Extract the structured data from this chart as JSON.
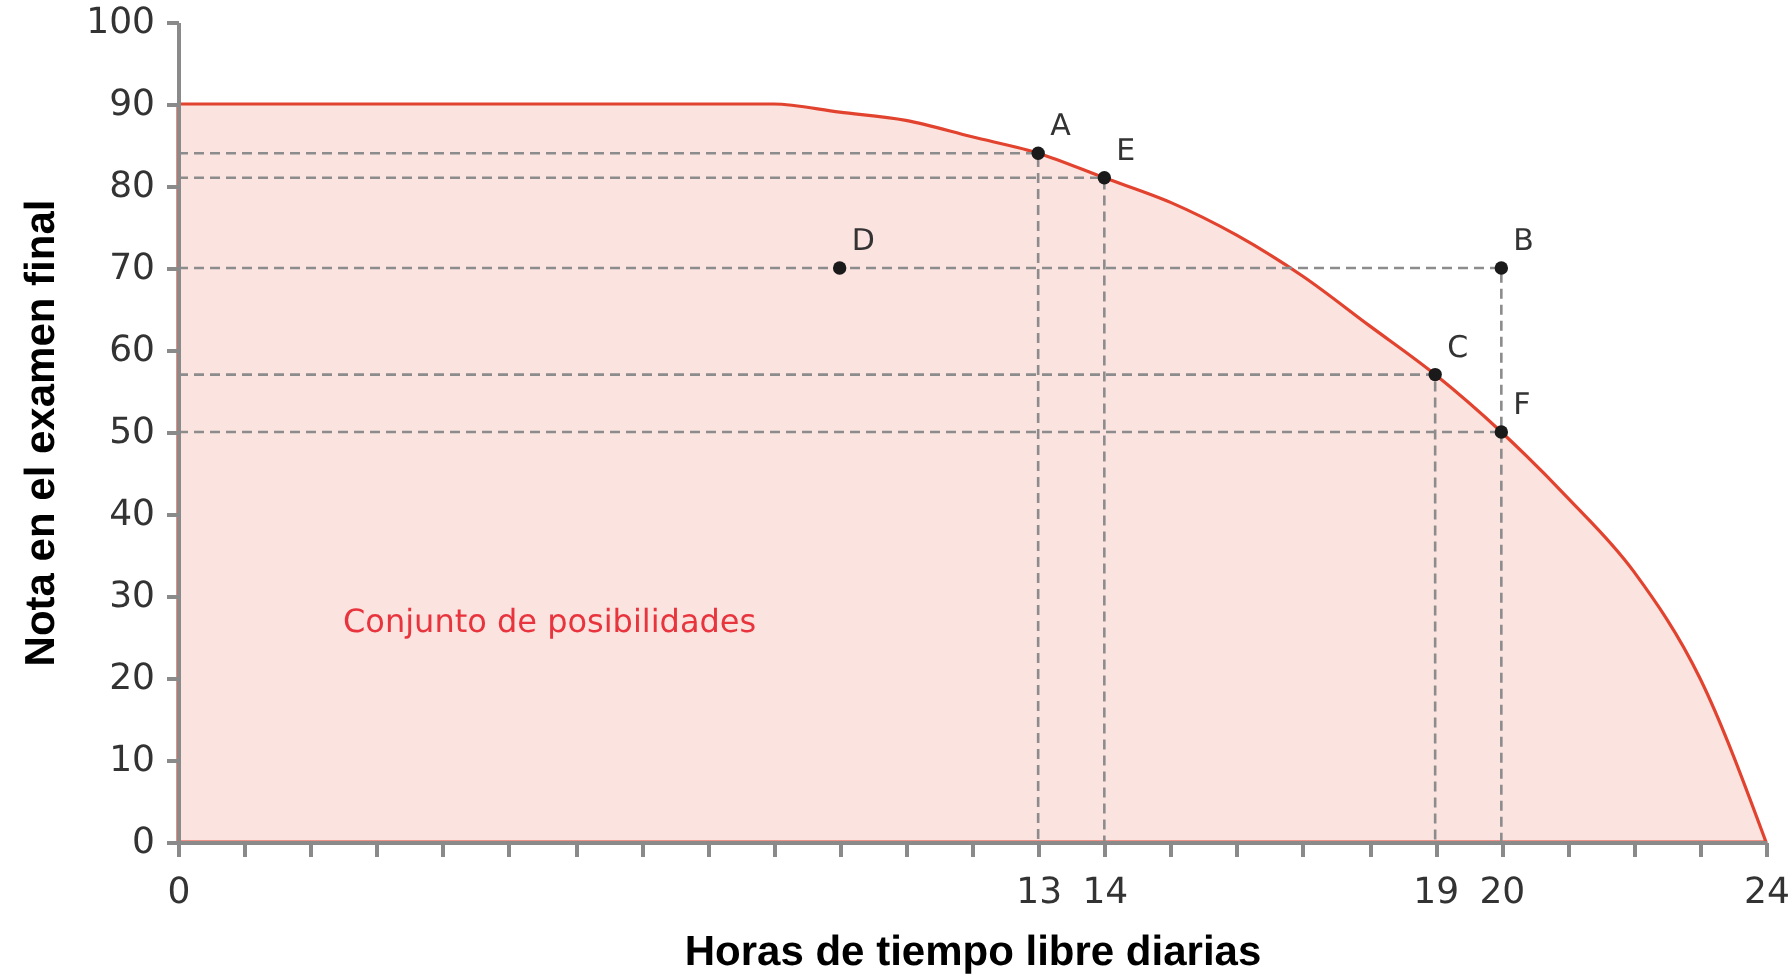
{
  "chart_data": {
    "type": "area",
    "xlabel": "Horas de tiempo libre diarias",
    "ylabel": "Nota en el examen final",
    "xlim": [
      0,
      24
    ],
    "ylim": [
      0,
      100
    ],
    "xticks": [
      0,
      {
        "value": 1,
        "label": null
      },
      {
        "value": 2,
        "label": null
      },
      {
        "value": 3,
        "label": null
      },
      {
        "value": 4,
        "label": null
      },
      {
        "value": 5,
        "label": null
      },
      {
        "value": 6,
        "label": null
      },
      {
        "value": 7,
        "label": null
      },
      {
        "value": 8,
        "label": null
      },
      {
        "value": 9,
        "label": null
      },
      {
        "value": 10,
        "label": null
      },
      {
        "value": 11,
        "label": null
      },
      {
        "value": 12,
        "label": null
      },
      13,
      14,
      {
        "value": 15,
        "label": null
      },
      {
        "value": 16,
        "label": null
      },
      {
        "value": 17,
        "label": null
      },
      {
        "value": 18,
        "label": null
      },
      19,
      20,
      {
        "value": 21,
        "label": null
      },
      {
        "value": 22,
        "label": null
      },
      {
        "value": 23,
        "label": null
      },
      24
    ],
    "yticks": [
      0,
      10,
      20,
      30,
      40,
      50,
      60,
      70,
      80,
      90,
      100
    ],
    "series": [
      {
        "color": "#e2432f",
        "x": [
          0,
          1,
          2,
          3,
          4,
          5,
          6,
          7,
          8,
          9,
          10,
          11,
          12,
          13,
          14,
          15,
          16,
          17,
          18,
          19,
          20,
          21,
          22,
          23,
          24
        ],
        "values": [
          90,
          90,
          90,
          90,
          90,
          90,
          90,
          90,
          90,
          90,
          89,
          88,
          86,
          84,
          81,
          78,
          74,
          69,
          63,
          57,
          50,
          42,
          33,
          20,
          0
        ]
      },
      {
        "type": "line",
        "color": "#8c8c8c",
        "line_style": "dashed",
        "marker": "none",
        "x": [
          0,
          13,
          13
        ],
        "values": [
          84,
          84,
          0
        ]
      },
      {
        "type": "line",
        "color": "#8c8c8c",
        "line_style": "dashed",
        "marker": "none",
        "x": [
          0,
          14,
          14
        ],
        "values": [
          81,
          81,
          0
        ]
      },
      {
        "type": "line",
        "color": "#8c8c8c",
        "line_style": "dashed",
        "marker": "none",
        "x": [
          0,
          20,
          20
        ],
        "values": [
          70,
          70,
          0
        ]
      },
      {
        "type": "line",
        "color": "#8c8c8c",
        "line_style": "dashed",
        "marker": "none",
        "x": [
          0,
          19,
          19
        ],
        "values": [
          57,
          57,
          0
        ]
      },
      {
        "type": "line",
        "color": "#8c8c8c",
        "line_style": "dashed",
        "marker": "none",
        "x": [
          0,
          20
        ],
        "values": [
          50,
          50
        ]
      },
      {
        "type": "scatter",
        "color": "#1a1a1a",
        "marker": "circle",
        "x": [
          13,
          20,
          19,
          10,
          14,
          20
        ],
        "values": [
          84,
          70,
          57,
          70,
          81,
          50
        ]
      }
    ],
    "annotations": [
      {
        "text": "A",
        "x": 13,
        "y": 84
      },
      {
        "text": "B",
        "x": 20,
        "y": 70
      },
      {
        "text": "C",
        "x": 19,
        "y": 57
      },
      {
        "text": "D",
        "x": 10,
        "y": 70
      },
      {
        "text": "E",
        "x": 14,
        "y": 81
      },
      {
        "text": "F",
        "x": 20,
        "y": 50
      },
      "Conjunto de posibilidades"
    ]
  }
}
